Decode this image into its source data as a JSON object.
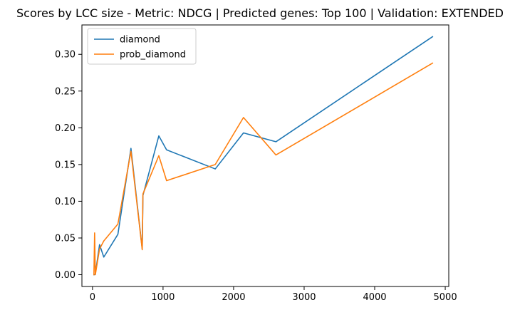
{
  "chart_data": {
    "type": "line",
    "title": "Scores by LCC size - Metric: NDCG | Predicted genes: Top 100 | Validation: EXTENDED",
    "xlabel": "",
    "ylabel": "",
    "xlim": [
      -150,
      5050
    ],
    "ylim": [
      -0.016,
      0.34
    ],
    "xticks": [
      0,
      1000,
      2000,
      3000,
      4000,
      5000
    ],
    "xtick_labels": [
      "0",
      "1000",
      "2000",
      "3000",
      "4000",
      "5000"
    ],
    "yticks": [
      0.0,
      0.05,
      0.1,
      0.15,
      0.2,
      0.25,
      0.3
    ],
    "ytick_labels": [
      "0.00",
      "0.05",
      "0.10",
      "0.15",
      "0.20",
      "0.25",
      "0.30"
    ],
    "grid": false,
    "legend_position": "top-left",
    "series": [
      {
        "name": "diamond",
        "color": "#1f77b4",
        "x": [
          20,
          30,
          40,
          100,
          160,
          360,
          545,
          705,
          715,
          940,
          1050,
          1740,
          2140,
          2600,
          4820
        ],
        "y": [
          0.0,
          0.0,
          0.001,
          0.041,
          0.024,
          0.055,
          0.172,
          0.035,
          0.108,
          0.189,
          0.17,
          0.144,
          0.193,
          0.181,
          0.324
        ]
      },
      {
        "name": "prob_diamond",
        "color": "#ff7f0e",
        "x": [
          20,
          30,
          40,
          100,
          160,
          360,
          545,
          705,
          715,
          940,
          1050,
          1740,
          2140,
          2600,
          4820
        ],
        "y": [
          0.0,
          0.057,
          0.0,
          0.035,
          0.046,
          0.069,
          0.168,
          0.034,
          0.11,
          0.162,
          0.128,
          0.15,
          0.214,
          0.163,
          0.288
        ]
      }
    ]
  }
}
